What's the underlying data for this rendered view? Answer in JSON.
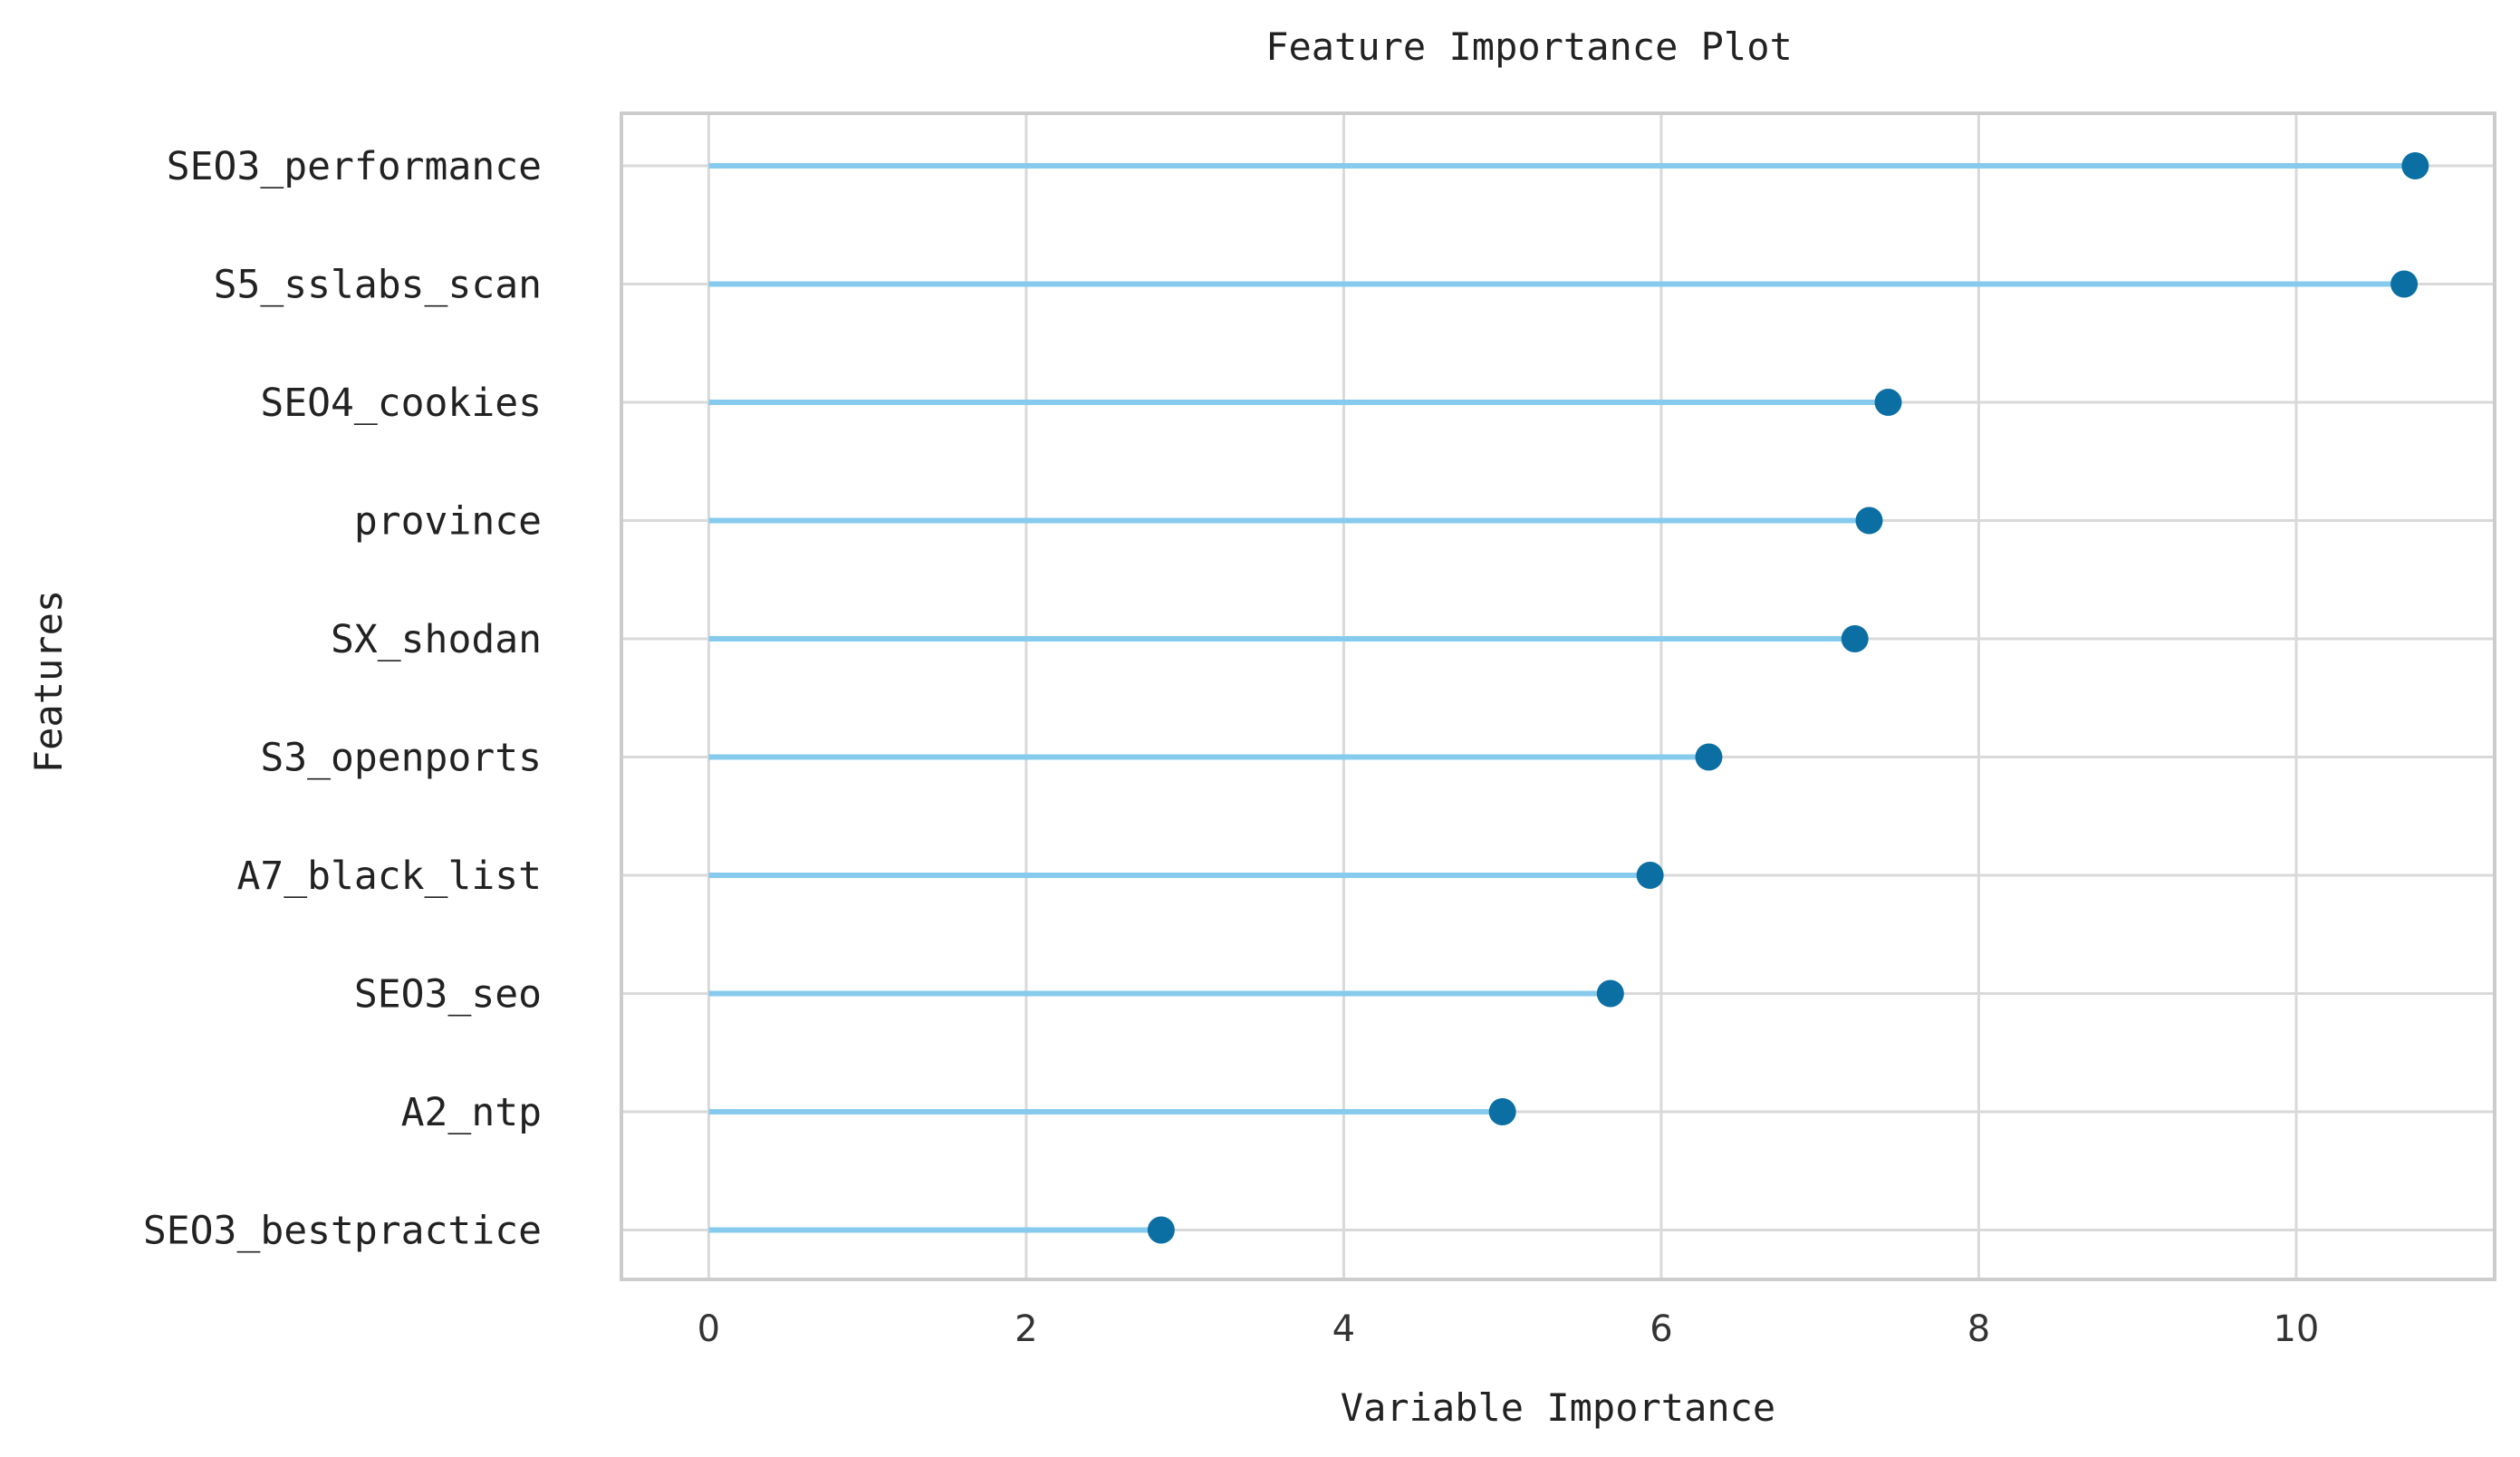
{
  "chart_data": {
    "type": "scatter",
    "style": "lollipop",
    "title": "Feature Importance Plot",
    "xlabel": "Variable Importance",
    "ylabel": "Features",
    "xlim": [
      -0.55,
      11.25
    ],
    "xticks": [
      0,
      2,
      4,
      6,
      8,
      10
    ],
    "grid": true,
    "legend": "none",
    "categories": [
      "SEO3_performance",
      "S5_sslabs_scan",
      "SEO4_cookies",
      "province",
      "SX_shodan",
      "S3_openports",
      "A7_black_list",
      "SEO3_seo",
      "A2_ntp",
      "SEO3_bestpractice"
    ],
    "values": [
      10.75,
      10.68,
      7.43,
      7.31,
      7.22,
      6.3,
      5.93,
      5.68,
      5.0,
      2.85
    ],
    "colors": {
      "stem": "#86cbed",
      "marker": "#0b6fa4",
      "grid": "#d9d9d9",
      "frame": "#cccccc"
    }
  }
}
